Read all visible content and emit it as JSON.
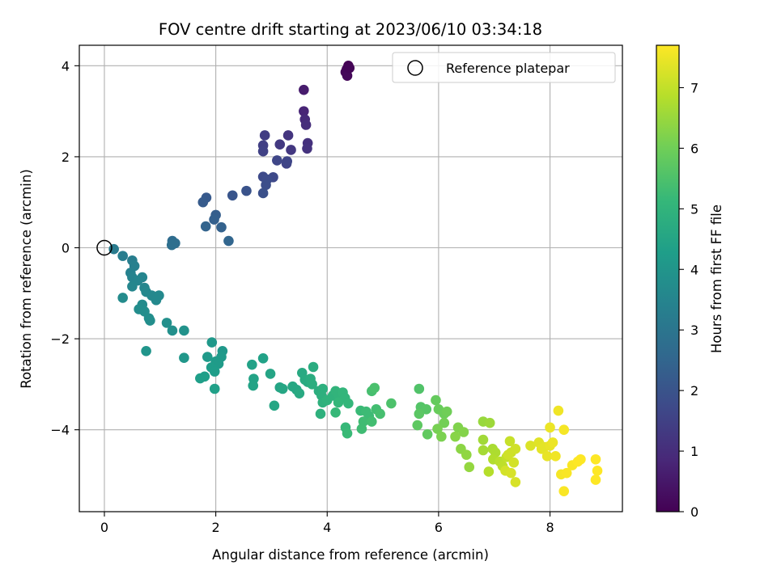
{
  "chart_data": {
    "type": "scatter",
    "title": "FOV centre drift starting at 2023/06/10 03:34:18",
    "xlabel": "Angular distance from reference (arcmin)",
    "ylabel": "Rotation from reference (arcmin)",
    "xlim": [
      -0.45,
      9.3
    ],
    "ylim": [
      -5.8,
      4.45
    ],
    "xticks": [
      "0",
      "2",
      "4",
      "6",
      "8"
    ],
    "yticks": [
      "−4",
      "−2",
      "0",
      "2",
      "4"
    ],
    "grid": true,
    "legend": {
      "label": "Reference platepar",
      "position": "top-right",
      "marker": "open-circle"
    },
    "reference_point": {
      "x": 0,
      "y": 0
    },
    "colorbar": {
      "label": "Hours from first FF file",
      "colormap": "viridis",
      "range": [
        0,
        7.7
      ],
      "ticks": [
        "0",
        "1",
        "2",
        "3",
        "4",
        "5",
        "6",
        "7"
      ]
    },
    "colormap_stops": [
      "#440154",
      "#482878",
      "#3e4989",
      "#31688e",
      "#26828e",
      "#1f9e89",
      "#35b779",
      "#6ece58",
      "#b5de2b",
      "#fde725"
    ],
    "points": [
      {
        "x": 4.38,
        "y": 4.0,
        "h": 0.0
      },
      {
        "x": 4.35,
        "y": 3.92,
        "h": 0.05
      },
      {
        "x": 4.33,
        "y": 3.86,
        "h": 0.1
      },
      {
        "x": 4.36,
        "y": 3.78,
        "h": 0.15
      },
      {
        "x": 4.4,
        "y": 3.95,
        "h": 0.08
      },
      {
        "x": 3.58,
        "y": 3.47,
        "h": 0.6
      },
      {
        "x": 3.58,
        "y": 3.0,
        "h": 0.8
      },
      {
        "x": 3.6,
        "y": 2.82,
        "h": 0.9
      },
      {
        "x": 3.62,
        "y": 2.7,
        "h": 1.0
      },
      {
        "x": 3.65,
        "y": 2.3,
        "h": 1.1
      },
      {
        "x": 3.64,
        "y": 2.18,
        "h": 1.15
      },
      {
        "x": 3.3,
        "y": 2.47,
        "h": 1.2
      },
      {
        "x": 3.35,
        "y": 2.15,
        "h": 1.25
      },
      {
        "x": 3.15,
        "y": 2.27,
        "h": 1.3
      },
      {
        "x": 2.88,
        "y": 2.47,
        "h": 1.4
      },
      {
        "x": 2.85,
        "y": 2.25,
        "h": 1.45
      },
      {
        "x": 2.85,
        "y": 2.12,
        "h": 1.5
      },
      {
        "x": 3.27,
        "y": 1.85,
        "h": 1.55
      },
      {
        "x": 3.28,
        "y": 1.9,
        "h": 1.6
      },
      {
        "x": 3.1,
        "y": 1.92,
        "h": 1.65
      },
      {
        "x": 3.03,
        "y": 1.55,
        "h": 1.7
      },
      {
        "x": 2.85,
        "y": 1.56,
        "h": 1.75
      },
      {
        "x": 2.92,
        "y": 1.5,
        "h": 1.8
      },
      {
        "x": 2.9,
        "y": 1.38,
        "h": 1.85
      },
      {
        "x": 2.85,
        "y": 1.2,
        "h": 1.9
      },
      {
        "x": 2.55,
        "y": 1.25,
        "h": 2.0
      },
      {
        "x": 2.3,
        "y": 1.15,
        "h": 2.05
      },
      {
        "x": 1.83,
        "y": 1.1,
        "h": 2.15
      },
      {
        "x": 1.77,
        "y": 1.0,
        "h": 2.2
      },
      {
        "x": 2.0,
        "y": 0.72,
        "h": 2.3
      },
      {
        "x": 1.97,
        "y": 0.62,
        "h": 2.35
      },
      {
        "x": 2.1,
        "y": 0.45,
        "h": 2.4
      },
      {
        "x": 1.82,
        "y": 0.47,
        "h": 2.45
      },
      {
        "x": 2.23,
        "y": 0.15,
        "h": 2.5
      },
      {
        "x": 1.22,
        "y": 0.15,
        "h": 2.7
      },
      {
        "x": 1.27,
        "y": 0.1,
        "h": 2.75
      },
      {
        "x": 1.21,
        "y": 0.06,
        "h": 2.8
      },
      {
        "x": 0.17,
        "y": -0.03,
        "h": 3.2
      },
      {
        "x": 0.33,
        "y": -0.18,
        "h": 3.25
      },
      {
        "x": 0.5,
        "y": -0.28,
        "h": 3.3
      },
      {
        "x": 0.54,
        "y": -0.4,
        "h": 3.35
      },
      {
        "x": 0.47,
        "y": -0.55,
        "h": 3.4
      },
      {
        "x": 0.5,
        "y": -0.65,
        "h": 3.45
      },
      {
        "x": 0.68,
        "y": -0.65,
        "h": 3.5
      },
      {
        "x": 0.6,
        "y": -0.72,
        "h": 3.5
      },
      {
        "x": 0.5,
        "y": -0.85,
        "h": 3.55
      },
      {
        "x": 0.72,
        "y": -0.88,
        "h": 3.55
      },
      {
        "x": 0.75,
        "y": -0.97,
        "h": 3.6
      },
      {
        "x": 0.85,
        "y": -1.05,
        "h": 3.6
      },
      {
        "x": 0.98,
        "y": -1.05,
        "h": 3.65
      },
      {
        "x": 0.93,
        "y": -1.15,
        "h": 3.65
      },
      {
        "x": 0.33,
        "y": -1.1,
        "h": 3.7
      },
      {
        "x": 0.68,
        "y": -1.25,
        "h": 3.7
      },
      {
        "x": 0.62,
        "y": -1.35,
        "h": 3.75
      },
      {
        "x": 0.72,
        "y": -1.4,
        "h": 3.75
      },
      {
        "x": 0.8,
        "y": -1.55,
        "h": 3.8
      },
      {
        "x": 0.82,
        "y": -1.6,
        "h": 3.8
      },
      {
        "x": 1.12,
        "y": -1.65,
        "h": 3.85
      },
      {
        "x": 1.22,
        "y": -1.82,
        "h": 3.85
      },
      {
        "x": 1.43,
        "y": -1.82,
        "h": 3.9
      },
      {
        "x": 0.75,
        "y": -2.27,
        "h": 4.0
      },
      {
        "x": 1.43,
        "y": -2.42,
        "h": 4.05
      },
      {
        "x": 1.93,
        "y": -2.08,
        "h": 4.1
      },
      {
        "x": 2.12,
        "y": -2.27,
        "h": 4.1
      },
      {
        "x": 2.1,
        "y": -2.4,
        "h": 4.15
      },
      {
        "x": 1.85,
        "y": -2.4,
        "h": 4.15
      },
      {
        "x": 2.0,
        "y": -2.5,
        "h": 4.2
      },
      {
        "x": 2.05,
        "y": -2.55,
        "h": 4.2
      },
      {
        "x": 1.92,
        "y": -2.63,
        "h": 4.25
      },
      {
        "x": 1.98,
        "y": -2.72,
        "h": 4.25
      },
      {
        "x": 1.8,
        "y": -2.83,
        "h": 4.3
      },
      {
        "x": 1.72,
        "y": -2.87,
        "h": 4.3
      },
      {
        "x": 1.98,
        "y": -3.1,
        "h": 4.35
      },
      {
        "x": 2.65,
        "y": -2.57,
        "h": 4.4
      },
      {
        "x": 2.85,
        "y": -2.43,
        "h": 4.4
      },
      {
        "x": 2.68,
        "y": -2.88,
        "h": 4.45
      },
      {
        "x": 2.67,
        "y": -3.03,
        "h": 4.45
      },
      {
        "x": 2.98,
        "y": -2.77,
        "h": 4.5
      },
      {
        "x": 3.15,
        "y": -3.07,
        "h": 4.5
      },
      {
        "x": 3.2,
        "y": -3.1,
        "h": 4.55
      },
      {
        "x": 3.05,
        "y": -3.47,
        "h": 4.55
      },
      {
        "x": 3.38,
        "y": -3.05,
        "h": 4.6
      },
      {
        "x": 3.45,
        "y": -3.12,
        "h": 4.6
      },
      {
        "x": 3.5,
        "y": -3.2,
        "h": 4.65
      },
      {
        "x": 3.55,
        "y": -2.75,
        "h": 4.65
      },
      {
        "x": 3.6,
        "y": -2.9,
        "h": 4.7
      },
      {
        "x": 3.65,
        "y": -2.95,
        "h": 4.7
      },
      {
        "x": 3.7,
        "y": -2.88,
        "h": 4.75
      },
      {
        "x": 3.75,
        "y": -2.62,
        "h": 4.75
      },
      {
        "x": 3.73,
        "y": -3.0,
        "h": 4.8
      },
      {
        "x": 3.85,
        "y": -3.15,
        "h": 4.8
      },
      {
        "x": 3.92,
        "y": -3.1,
        "h": 4.85
      },
      {
        "x": 3.9,
        "y": -3.25,
        "h": 4.85
      },
      {
        "x": 3.92,
        "y": -3.4,
        "h": 4.9
      },
      {
        "x": 3.88,
        "y": -3.65,
        "h": 4.9
      },
      {
        "x": 4.0,
        "y": -3.35,
        "h": 4.95
      },
      {
        "x": 4.1,
        "y": -3.25,
        "h": 4.95
      },
      {
        "x": 4.15,
        "y": -3.15,
        "h": 5.0
      },
      {
        "x": 4.2,
        "y": -3.22,
        "h": 5.0
      },
      {
        "x": 4.28,
        "y": -3.18,
        "h": 5.05
      },
      {
        "x": 4.32,
        "y": -3.3,
        "h": 5.05
      },
      {
        "x": 4.2,
        "y": -3.4,
        "h": 5.1
      },
      {
        "x": 4.38,
        "y": -3.42,
        "h": 5.1
      },
      {
        "x": 4.15,
        "y": -3.62,
        "h": 5.15
      },
      {
        "x": 4.33,
        "y": -3.95,
        "h": 5.15
      },
      {
        "x": 4.36,
        "y": -4.08,
        "h": 5.2
      },
      {
        "x": 4.6,
        "y": -3.58,
        "h": 5.2
      },
      {
        "x": 4.7,
        "y": -3.6,
        "h": 5.25
      },
      {
        "x": 4.75,
        "y": -3.7,
        "h": 5.25
      },
      {
        "x": 4.65,
        "y": -3.82,
        "h": 5.3
      },
      {
        "x": 4.62,
        "y": -3.98,
        "h": 5.3
      },
      {
        "x": 4.8,
        "y": -3.82,
        "h": 5.35
      },
      {
        "x": 4.88,
        "y": -3.55,
        "h": 5.35
      },
      {
        "x": 4.95,
        "y": -3.65,
        "h": 5.4
      },
      {
        "x": 4.8,
        "y": -3.15,
        "h": 5.4
      },
      {
        "x": 4.85,
        "y": -3.08,
        "h": 5.45
      },
      {
        "x": 5.15,
        "y": -3.42,
        "h": 5.5
      },
      {
        "x": 5.65,
        "y": -3.1,
        "h": 5.55
      },
      {
        "x": 5.68,
        "y": -3.5,
        "h": 5.6
      },
      {
        "x": 5.78,
        "y": -3.55,
        "h": 5.65
      },
      {
        "x": 5.65,
        "y": -3.65,
        "h": 5.7
      },
      {
        "x": 5.62,
        "y": -3.9,
        "h": 5.75
      },
      {
        "x": 5.8,
        "y": -4.1,
        "h": 5.8
      },
      {
        "x": 5.95,
        "y": -3.35,
        "h": 5.85
      },
      {
        "x": 6.0,
        "y": -3.55,
        "h": 5.9
      },
      {
        "x": 6.1,
        "y": -3.65,
        "h": 5.95
      },
      {
        "x": 6.15,
        "y": -3.6,
        "h": 6.0
      },
      {
        "x": 6.1,
        "y": -3.85,
        "h": 6.05
      },
      {
        "x": 5.98,
        "y": -3.98,
        "h": 6.1
      },
      {
        "x": 6.05,
        "y": -4.15,
        "h": 6.15
      },
      {
        "x": 6.35,
        "y": -3.95,
        "h": 6.2
      },
      {
        "x": 6.45,
        "y": -4.05,
        "h": 6.25
      },
      {
        "x": 6.3,
        "y": -4.15,
        "h": 6.3
      },
      {
        "x": 6.4,
        "y": -4.42,
        "h": 6.35
      },
      {
        "x": 6.5,
        "y": -4.55,
        "h": 6.4
      },
      {
        "x": 6.55,
        "y": -4.82,
        "h": 6.45
      },
      {
        "x": 6.8,
        "y": -3.82,
        "h": 6.5
      },
      {
        "x": 6.92,
        "y": -3.85,
        "h": 6.55
      },
      {
        "x": 6.8,
        "y": -4.22,
        "h": 6.6
      },
      {
        "x": 6.8,
        "y": -4.45,
        "h": 6.65
      },
      {
        "x": 6.97,
        "y": -4.42,
        "h": 6.7
      },
      {
        "x": 7.02,
        "y": -4.5,
        "h": 6.75
      },
      {
        "x": 6.98,
        "y": -4.65,
        "h": 6.8
      },
      {
        "x": 6.9,
        "y": -4.92,
        "h": 6.85
      },
      {
        "x": 7.1,
        "y": -4.7,
        "h": 6.9
      },
      {
        "x": 7.15,
        "y": -4.8,
        "h": 6.95
      },
      {
        "x": 7.22,
        "y": -4.6,
        "h": 7.0
      },
      {
        "x": 7.28,
        "y": -4.25,
        "h": 7.05
      },
      {
        "x": 7.3,
        "y": -4.5,
        "h": 7.1
      },
      {
        "x": 7.38,
        "y": -4.42,
        "h": 7.15
      },
      {
        "x": 7.25,
        "y": -4.55,
        "h": 7.15
      },
      {
        "x": 7.35,
        "y": -4.72,
        "h": 7.2
      },
      {
        "x": 7.2,
        "y": -4.9,
        "h": 7.2
      },
      {
        "x": 7.3,
        "y": -4.95,
        "h": 7.25
      },
      {
        "x": 7.38,
        "y": -5.15,
        "h": 7.25
      },
      {
        "x": 7.65,
        "y": -4.35,
        "h": 7.3
      },
      {
        "x": 7.8,
        "y": -4.28,
        "h": 7.35
      },
      {
        "x": 7.85,
        "y": -4.42,
        "h": 7.4
      },
      {
        "x": 7.9,
        "y": -4.38,
        "h": 7.4
      },
      {
        "x": 7.95,
        "y": -4.58,
        "h": 7.45
      },
      {
        "x": 8.0,
        "y": -4.35,
        "h": 7.45
      },
      {
        "x": 8.05,
        "y": -4.28,
        "h": 7.5
      },
      {
        "x": 8.0,
        "y": -3.95,
        "h": 7.5
      },
      {
        "x": 8.1,
        "y": -4.58,
        "h": 7.55
      },
      {
        "x": 8.15,
        "y": -3.58,
        "h": 7.55
      },
      {
        "x": 8.25,
        "y": -4.0,
        "h": 7.6
      },
      {
        "x": 8.2,
        "y": -4.98,
        "h": 7.6
      },
      {
        "x": 8.3,
        "y": -4.95,
        "h": 7.65
      },
      {
        "x": 8.25,
        "y": -5.35,
        "h": 7.65
      },
      {
        "x": 8.4,
        "y": -4.78,
        "h": 7.65
      },
      {
        "x": 8.5,
        "y": -4.7,
        "h": 7.7
      },
      {
        "x": 8.55,
        "y": -4.65,
        "h": 7.7
      },
      {
        "x": 8.82,
        "y": -4.65,
        "h": 7.7
      },
      {
        "x": 8.85,
        "y": -4.9,
        "h": 7.7
      },
      {
        "x": 8.82,
        "y": -5.1,
        "h": 7.7
      }
    ]
  }
}
